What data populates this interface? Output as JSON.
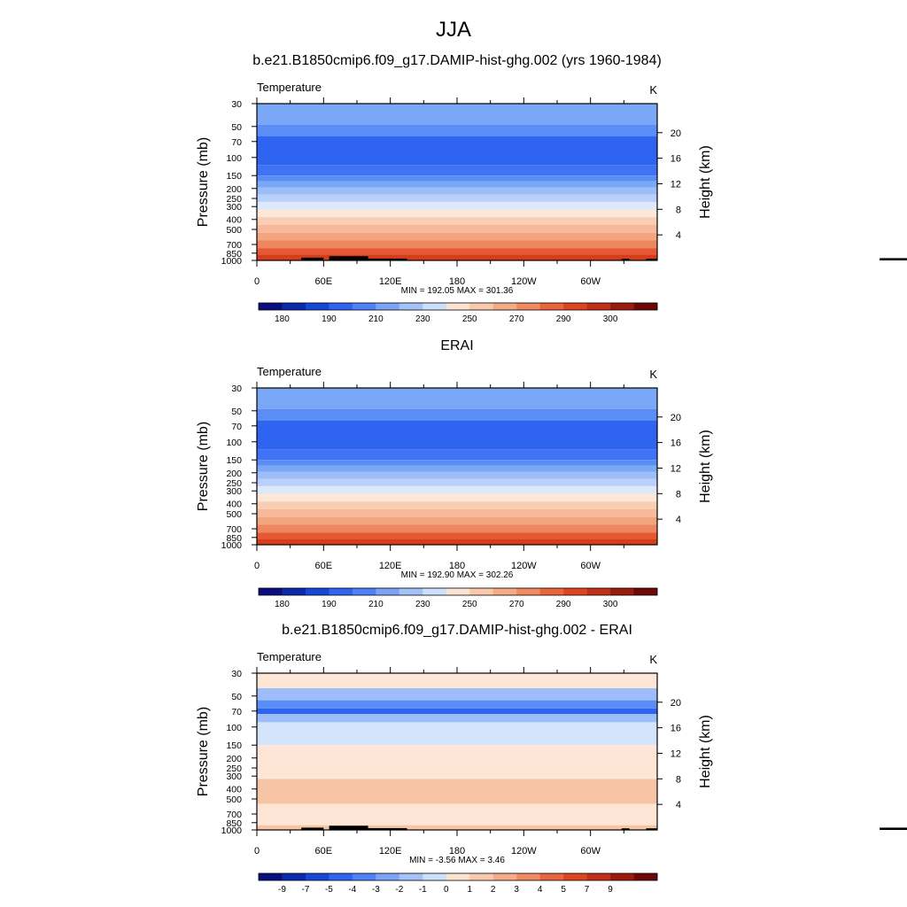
{
  "main_title": "JJA",
  "chart_data": [
    {
      "type": "contour",
      "title": "b.e21.B1850cmip6.f09_g17.DAMIP-hist-ghg.002 (yrs 1960-1984)",
      "left_label": "Temperature",
      "units": "K",
      "ylabel": "Pressure (mb)",
      "ylabel_right": "Height (km)",
      "xlabel": "",
      "x_ticks": [
        "0",
        "60E",
        "120E",
        "180",
        "120W",
        "60W"
      ],
      "p_ticks": [
        "30",
        "50",
        "70",
        "100",
        "150",
        "200",
        "250",
        "300",
        "400",
        "500",
        "700",
        "850",
        "1000"
      ],
      "h_ticks": [
        "20",
        "16",
        "12",
        "8",
        "4"
      ],
      "stats": "MIN = 192.05  MAX = 301.36",
      "colorbar_labels": [
        "180",
        "190",
        "210",
        "230",
        "250",
        "270",
        "290",
        "300"
      ],
      "bands_top_to_bottom": [
        {
          "p_top": 30,
          "p_bot": 48,
          "level": 220
        },
        {
          "p_top": 48,
          "p_bot": 62,
          "level": 215
        },
        {
          "p_top": 62,
          "p_bot": 118,
          "level": 205
        },
        {
          "p_top": 118,
          "p_bot": 150,
          "level": 210
        },
        {
          "p_top": 150,
          "p_bot": 170,
          "level": 215
        },
        {
          "p_top": 170,
          "p_bot": 195,
          "level": 220
        },
        {
          "p_top": 195,
          "p_bot": 230,
          "level": 225
        },
        {
          "p_top": 230,
          "p_bot": 270,
          "level": 230
        },
        {
          "p_top": 270,
          "p_bot": 320,
          "level": 240
        },
        {
          "p_top": 320,
          "p_bot": 380,
          "level": 250
        },
        {
          "p_top": 380,
          "p_bot": 450,
          "level": 260
        },
        {
          "p_top": 450,
          "p_bot": 540,
          "level": 265
        },
        {
          "p_top": 540,
          "p_bot": 640,
          "level": 270
        },
        {
          "p_top": 640,
          "p_bot": 760,
          "level": 280
        },
        {
          "p_top": 760,
          "p_bot": 880,
          "level": 290
        },
        {
          "p_top": 880,
          "p_bot": 1000,
          "level": 295
        }
      ],
      "topography": [
        [
          40,
          60,
          940
        ],
        [
          65,
          100,
          910
        ],
        [
          100,
          135,
          960
        ],
        [
          328,
          335,
          965
        ],
        [
          350,
          360,
          965
        ],
        [
          560,
          620,
          950
        ]
      ]
    },
    {
      "type": "contour",
      "title": "ERAI",
      "left_label": "Temperature",
      "units": "K",
      "ylabel": "Pressure (mb)",
      "ylabel_right": "Height (km)",
      "xlabel": "",
      "x_ticks": [
        "0",
        "60E",
        "120E",
        "180",
        "120W",
        "60W"
      ],
      "p_ticks": [
        "30",
        "50",
        "70",
        "100",
        "150",
        "200",
        "250",
        "300",
        "400",
        "500",
        "700",
        "850",
        "1000"
      ],
      "h_ticks": [
        "20",
        "16",
        "12",
        "8",
        "4"
      ],
      "stats": "MIN = 192.90  MAX = 302.26",
      "colorbar_labels": [
        "180",
        "190",
        "210",
        "230",
        "250",
        "270",
        "290",
        "300"
      ],
      "bands_top_to_bottom": [
        {
          "p_top": 30,
          "p_bot": 48,
          "level": 220
        },
        {
          "p_top": 48,
          "p_bot": 62,
          "level": 215
        },
        {
          "p_top": 62,
          "p_bot": 118,
          "level": 205
        },
        {
          "p_top": 118,
          "p_bot": 150,
          "level": 210
        },
        {
          "p_top": 150,
          "p_bot": 170,
          "level": 215
        },
        {
          "p_top": 170,
          "p_bot": 195,
          "level": 220
        },
        {
          "p_top": 195,
          "p_bot": 230,
          "level": 225
        },
        {
          "p_top": 230,
          "p_bot": 270,
          "level": 230
        },
        {
          "p_top": 270,
          "p_bot": 320,
          "level": 240
        },
        {
          "p_top": 320,
          "p_bot": 380,
          "level": 250
        },
        {
          "p_top": 380,
          "p_bot": 450,
          "level": 260
        },
        {
          "p_top": 450,
          "p_bot": 540,
          "level": 265
        },
        {
          "p_top": 540,
          "p_bot": 640,
          "level": 270
        },
        {
          "p_top": 640,
          "p_bot": 760,
          "level": 280
        },
        {
          "p_top": 760,
          "p_bot": 880,
          "level": 290
        },
        {
          "p_top": 880,
          "p_bot": 1000,
          "level": 295
        }
      ],
      "topography": []
    },
    {
      "type": "contour",
      "title": "b.e21.B1850cmip6.f09_g17.DAMIP-hist-ghg.002 - ERAI",
      "left_label": "Temperature",
      "units": "K",
      "ylabel": "Pressure (mb)",
      "ylabel_right": "Height (km)",
      "xlabel": "",
      "x_ticks": [
        "0",
        "60E",
        "120E",
        "180",
        "120W",
        "60W"
      ],
      "p_ticks": [
        "30",
        "50",
        "70",
        "100",
        "150",
        "200",
        "250",
        "300",
        "400",
        "500",
        "700",
        "850",
        "1000"
      ],
      "h_ticks": [
        "20",
        "16",
        "12",
        "8",
        "4"
      ],
      "stats": "MIN =  -3.56  MAX =   3.46",
      "colorbar_labels": [
        "-9",
        "-7",
        "-5",
        "-4",
        "-3",
        "-2",
        "-1",
        "0",
        "1",
        "2",
        "3",
        "4",
        "5",
        "7",
        "9"
      ],
      "bands_top_to_bottom": [
        {
          "p_top": 30,
          "p_bot": 42,
          "level": 0.5
        },
        {
          "p_top": 42,
          "p_bot": 55,
          "level": -1.5
        },
        {
          "p_top": 55,
          "p_bot": 66,
          "level": -2.5
        },
        {
          "p_top": 66,
          "p_bot": 75,
          "level": -3.5
        },
        {
          "p_top": 75,
          "p_bot": 90,
          "level": -1.5
        },
        {
          "p_top": 90,
          "p_bot": 150,
          "level": -0.5
        },
        {
          "p_top": 150,
          "p_bot": 320,
          "level": 0.5
        },
        {
          "p_top": 320,
          "p_bot": 560,
          "level": 1.5
        },
        {
          "p_top": 560,
          "p_bot": 900,
          "level": 0.5
        },
        {
          "p_top": 900,
          "p_bot": 1000,
          "level": 1.5
        }
      ],
      "topography": [
        [
          40,
          60,
          950
        ],
        [
          65,
          100,
          910
        ],
        [
          100,
          135,
          960
        ],
        [
          328,
          335,
          965
        ],
        [
          350,
          360,
          965
        ],
        [
          560,
          620,
          950
        ]
      ]
    }
  ]
}
